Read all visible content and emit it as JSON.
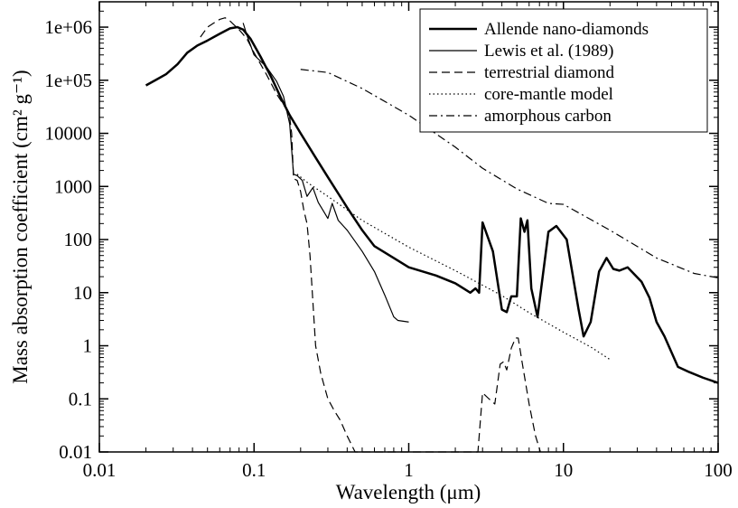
{
  "chart_data": {
    "type": "line",
    "title": "",
    "xlabel": "Wavelength (μm)",
    "ylabel": "Mass absorption coefficient (cm² g⁻¹)",
    "x_scale": "log",
    "y_scale": "log",
    "xlim": [
      0.01,
      100
    ],
    "ylim": [
      0.01,
      3000000
    ],
    "x_ticks": [
      0.01,
      0.1,
      1,
      10,
      100
    ],
    "x_tick_labels": [
      "0.01",
      "0.1",
      "1",
      "10",
      "100"
    ],
    "y_ticks": [
      0.01,
      0.1,
      1,
      10,
      100,
      1000,
      10000,
      100000,
      1000000
    ],
    "y_tick_labels": [
      "0.01",
      "0.1",
      "1",
      "10",
      "100",
      "1000",
      "10000",
      "1e+05",
      "1e+06"
    ],
    "grid": false,
    "legend_position": "top-right",
    "series": [
      {
        "name": "Allende nano-diamonds",
        "style": "solid-thick",
        "points": [
          [
            0.02,
            80000
          ],
          [
            0.023,
            100000
          ],
          [
            0.027,
            130000
          ],
          [
            0.032,
            200000
          ],
          [
            0.037,
            330000
          ],
          [
            0.043,
            450000
          ],
          [
            0.05,
            560000
          ],
          [
            0.06,
            750000
          ],
          [
            0.07,
            950000
          ],
          [
            0.078,
            1000000
          ],
          [
            0.085,
            900000
          ],
          [
            0.095,
            600000
          ],
          [
            0.11,
            280000
          ],
          [
            0.13,
            110000
          ],
          [
            0.15,
            45000
          ],
          [
            0.17,
            22000
          ],
          [
            0.2,
            10000
          ],
          [
            0.25,
            3500
          ],
          [
            0.3,
            1500
          ],
          [
            0.4,
            400
          ],
          [
            0.5,
            150
          ],
          [
            0.6,
            75
          ],
          [
            0.8,
            45
          ],
          [
            1.0,
            30
          ],
          [
            1.5,
            21
          ],
          [
            2.0,
            15
          ],
          [
            2.5,
            10
          ],
          [
            2.7,
            12
          ],
          [
            2.85,
            10
          ],
          [
            3.0,
            210
          ],
          [
            3.5,
            60
          ],
          [
            4.0,
            4.8
          ],
          [
            4.3,
            4.3
          ],
          [
            4.6,
            8.5
          ],
          [
            5.0,
            8.5
          ],
          [
            5.3,
            250
          ],
          [
            5.6,
            140
          ],
          [
            5.85,
            230
          ],
          [
            6.2,
            12
          ],
          [
            6.8,
            3.5
          ],
          [
            8.0,
            140
          ],
          [
            9.0,
            180
          ],
          [
            10.5,
            100
          ],
          [
            12.5,
            5.0
          ],
          [
            13.5,
            1.5
          ],
          [
            15,
            2.8
          ],
          [
            17,
            25
          ],
          [
            19,
            45
          ],
          [
            21,
            28
          ],
          [
            23,
            26
          ],
          [
            26,
            30
          ],
          [
            32,
            16
          ],
          [
            36,
            8
          ],
          [
            40,
            2.8
          ],
          [
            45,
            1.5
          ],
          [
            55,
            0.4
          ],
          [
            65,
            0.32
          ],
          [
            80,
            0.25
          ],
          [
            100,
            0.2
          ]
        ]
      },
      {
        "name": "Lewis et al. (1989)",
        "style": "solid-thin",
        "points": [
          [
            0.085,
            1200000
          ],
          [
            0.09,
            700000
          ],
          [
            0.1,
            300000
          ],
          [
            0.12,
            180000
          ],
          [
            0.14,
            95000
          ],
          [
            0.155,
            50000
          ],
          [
            0.17,
            15000
          ],
          [
            0.18,
            1700
          ],
          [
            0.19,
            1600
          ],
          [
            0.205,
            1300
          ],
          [
            0.22,
            650
          ],
          [
            0.24,
            950
          ],
          [
            0.26,
            500
          ],
          [
            0.28,
            350
          ],
          [
            0.3,
            250
          ],
          [
            0.32,
            480
          ],
          [
            0.35,
            230
          ],
          [
            0.4,
            150
          ],
          [
            0.5,
            60
          ],
          [
            0.6,
            25
          ],
          [
            0.7,
            9
          ],
          [
            0.8,
            3.5
          ],
          [
            0.85,
            3
          ],
          [
            1.0,
            2.8
          ]
        ]
      },
      {
        "name": "terrestrial diamond",
        "style": "dashed",
        "points": [
          [
            0.045,
            650000
          ],
          [
            0.05,
            1000000
          ],
          [
            0.055,
            1200000
          ],
          [
            0.06,
            1400000
          ],
          [
            0.065,
            1500000
          ],
          [
            0.07,
            1300000
          ],
          [
            0.08,
            900000
          ],
          [
            0.09,
            600000
          ],
          [
            0.1,
            330000
          ],
          [
            0.12,
            130000
          ],
          [
            0.14,
            55000
          ],
          [
            0.16,
            30000
          ],
          [
            0.17,
            20000
          ],
          [
            0.175,
            10000
          ],
          [
            0.18,
            1400
          ],
          [
            0.19,
            1300
          ],
          [
            0.2,
            800
          ],
          [
            0.21,
            350
          ],
          [
            0.22,
            200
          ],
          [
            0.23,
            50
          ],
          [
            0.25,
            1.0
          ],
          [
            0.27,
            0.3
          ],
          [
            0.3,
            0.1
          ],
          [
            0.33,
            0.06
          ],
          [
            0.36,
            0.04
          ],
          [
            0.4,
            0.02
          ],
          [
            0.45,
            0.01
          ],
          [
            2.8,
            0.01
          ],
          [
            3.0,
            0.13
          ],
          [
            3.3,
            0.1
          ],
          [
            3.6,
            0.08
          ],
          [
            3.9,
            0.45
          ],
          [
            4.1,
            0.5
          ],
          [
            4.3,
            0.35
          ],
          [
            4.6,
            0.9
          ],
          [
            4.9,
            1.4
          ],
          [
            5.1,
            1.4
          ],
          [
            5.4,
            0.5
          ],
          [
            6.0,
            0.08
          ],
          [
            6.6,
            0.02
          ],
          [
            7.1,
            0.01
          ]
        ]
      },
      {
        "name": "core-mantle model",
        "style": "dotted",
        "points": [
          [
            0.19,
            1700
          ],
          [
            0.22,
            1200
          ],
          [
            0.3,
            650
          ],
          [
            0.5,
            230
          ],
          [
            1.0,
            72
          ],
          [
            2.0,
            26
          ],
          [
            4.0,
            8.8
          ],
          [
            6.0,
            4.2
          ],
          [
            10,
            1.8
          ],
          [
            15,
            0.95
          ],
          [
            20,
            0.55
          ]
        ]
      },
      {
        "name": "amorphous carbon",
        "style": "dash-dot",
        "points": [
          [
            0.2,
            160000
          ],
          [
            0.3,
            140000
          ],
          [
            0.5,
            70000
          ],
          [
            1.0,
            22000
          ],
          [
            2.0,
            5500
          ],
          [
            3.0,
            2200
          ],
          [
            5.0,
            900
          ],
          [
            8.0,
            480
          ],
          [
            10,
            460
          ],
          [
            20,
            150
          ],
          [
            40,
            45
          ],
          [
            70,
            23
          ],
          [
            100,
            19
          ]
        ]
      }
    ]
  }
}
